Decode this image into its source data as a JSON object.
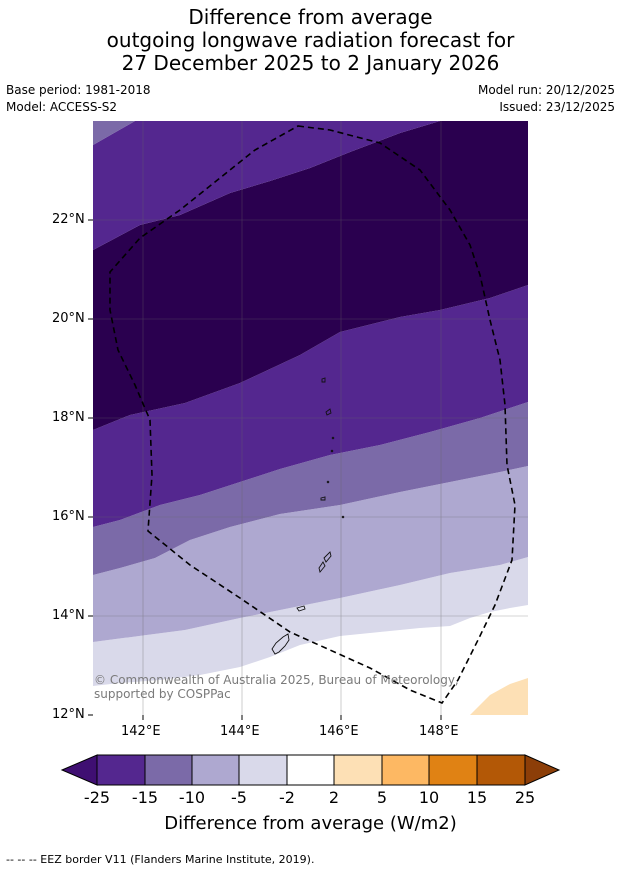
{
  "title": {
    "line1": "Difference from average",
    "line2": "outgoing longwave radiation forecast for",
    "line3": "27 December 2025 to 2 January 2026"
  },
  "meta": {
    "base_period": "Base period: 1981-2018",
    "model": "Model: ACCESS-S2",
    "model_run": "Model run: 20/12/2025",
    "issued": "Issued: 23/12/2025"
  },
  "map": {
    "lat_labels": [
      "22°N",
      "20°N",
      "18°N",
      "16°N",
      "14°N",
      "12°N"
    ],
    "lon_labels": [
      "142°E",
      "144°E",
      "146°E",
      "148°E"
    ],
    "copyright": "© Commonwealth of Australia 2025, Bureau of Meteorology, supported by COSPPac",
    "band_colors": [
      "#2a004f",
      "#54278f",
      "#7b6aa8",
      "#aea8d0",
      "#d9d9ea",
      "#ffffff",
      "#fde0b5"
    ]
  },
  "colorbar": {
    "ticks": [
      "-25",
      "-15",
      "-10",
      "-5",
      "-2",
      "2",
      "5",
      "10",
      "15",
      "25"
    ],
    "colors": [
      "#54278f",
      "#7b6aa8",
      "#aea8d0",
      "#d9d9ea",
      "#ffffff",
      "#fde0b5",
      "#fdb863",
      "#e08214",
      "#b35806"
    ],
    "extend_low_color": "#3f0f72",
    "extend_high_color": "#8c3e08",
    "label": "Difference from average (W/m2)"
  },
  "footer": "--  --  -- EEZ border V11 (Flanders Marine Institute, 2019)."
}
